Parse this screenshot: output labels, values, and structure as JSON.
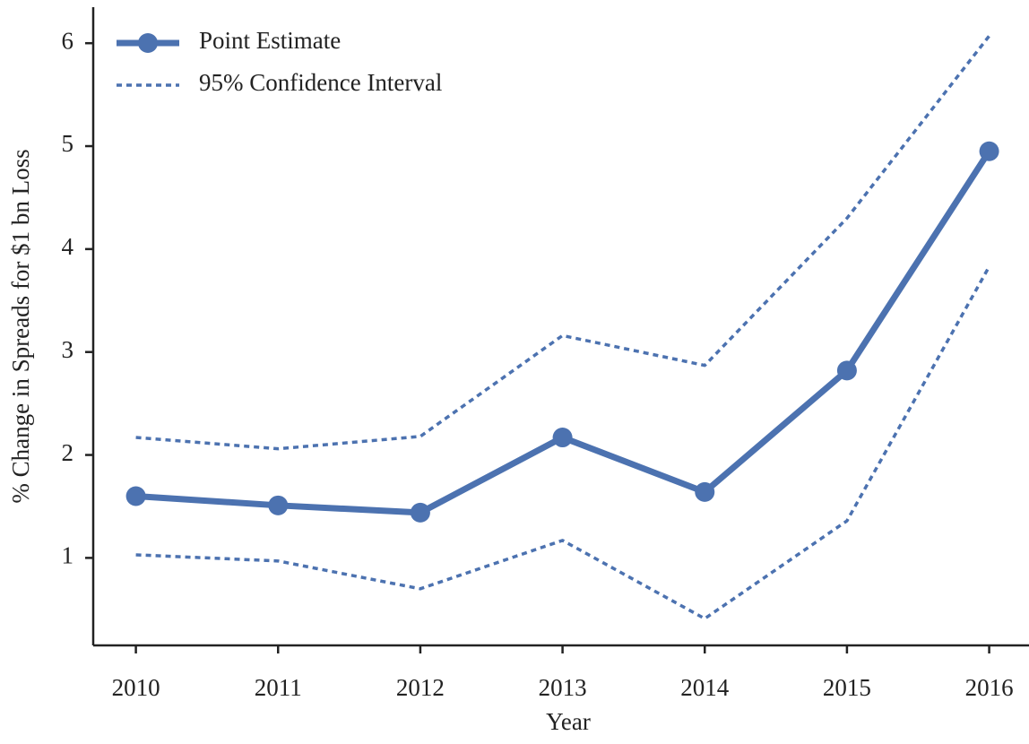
{
  "chart_data": {
    "type": "line",
    "x_label": "Year",
    "y_label": "% Change in Spreads for  $1 bn Loss",
    "x": [
      2010,
      2011,
      2012,
      2013,
      2014,
      2015,
      2016
    ],
    "series": [
      {
        "name": "Point Estimate",
        "color": "#4c72b0",
        "style": "solid",
        "markers": true,
        "values": [
          1.6,
          1.51,
          1.44,
          2.17,
          1.64,
          2.82,
          4.95
        ]
      },
      {
        "name": "95% Confidence Interval",
        "color": "#4c72b0",
        "style": "dotted",
        "markers": false,
        "upper": [
          2.17,
          2.06,
          2.18,
          3.16,
          2.87,
          4.3,
          6.07
        ],
        "lower": [
          1.03,
          0.97,
          0.7,
          1.17,
          0.41,
          1.36,
          3.83
        ]
      }
    ],
    "xlim": [
      2009.7,
      2016.28
    ],
    "xticks": [
      2010,
      2011,
      2012,
      2013,
      2014,
      2015,
      2016
    ],
    "ylim": [
      0.15,
      6.35
    ],
    "yticks": [
      1,
      2,
      3,
      4,
      5,
      6
    ],
    "grid": false,
    "legend": "upper-left"
  }
}
